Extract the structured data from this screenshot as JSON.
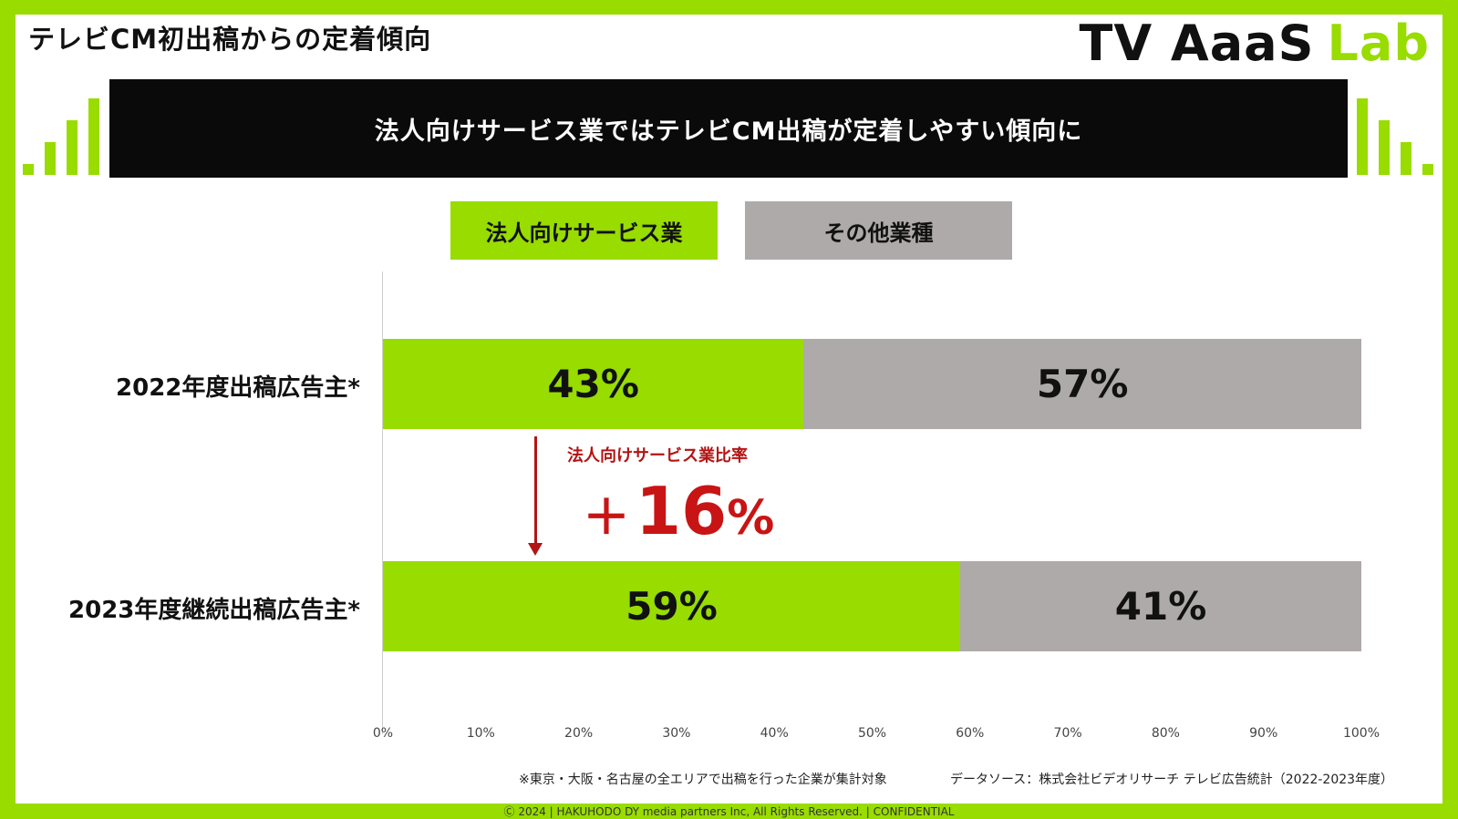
{
  "slide_title": "テレビCM初出稿からの定着傾向",
  "logo": {
    "part1": "TV AaaS",
    "part2": "Lab"
  },
  "headline": "法人向けサービス業ではテレビCM出稿が定着しやすい傾向に",
  "colors": {
    "accent": "#98dc00",
    "other": "#aeaaa9",
    "annotation": "#c81414",
    "headline_bg": "#0a0a0a"
  },
  "chart_data": {
    "type": "bar",
    "orientation": "horizontal",
    "stacked": true,
    "categories": [
      "2022年度出稿広告主*",
      "2023年度継続出稿広告主*"
    ],
    "series": [
      {
        "name": "法人向けサービス業",
        "values": [
          43,
          59
        ],
        "labels": [
          "43%",
          "59%"
        ],
        "color": "#98dc00"
      },
      {
        "name": "その他業種",
        "values": [
          57,
          41
        ],
        "labels": [
          "57%",
          "41%"
        ],
        "color": "#aeaaa9"
      }
    ],
    "xlim": [
      0,
      100
    ],
    "xticks": [
      "0%",
      "10%",
      "20%",
      "30%",
      "40%",
      "50%",
      "60%",
      "70%",
      "80%",
      "90%",
      "100%"
    ],
    "legend_position": "top-center",
    "grid": false,
    "annotation": {
      "label": "法人向けサービス業比率",
      "plus": "＋",
      "number": "16",
      "percent": "%"
    }
  },
  "footnotes": {
    "note": "※東京・大阪・名古屋の全エリアで出稿を行った企業が集計対象",
    "source": "データソース：株式会社ビデオリサーチ テレビ広告統計（2022-2023年度）"
  },
  "copyright": "Ⓒ 2024 | HAKUHODO DY media partners Inc, All Rights Reserved. | CONFIDENTIAL"
}
